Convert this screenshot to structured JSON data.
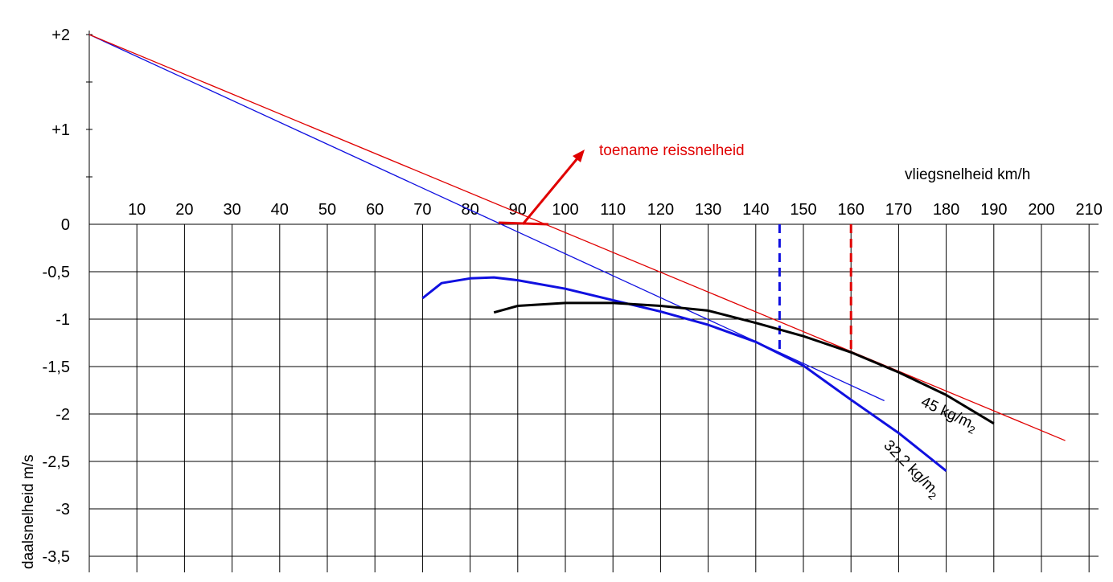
{
  "chart_data": {
    "type": "line",
    "title": "",
    "xlabel": "vliegsnelheid km/h",
    "ylabel": "daalsnelheid m/s",
    "xlim": [
      0,
      210
    ],
    "ylim": [
      -3.5,
      2
    ],
    "x_ticks": [
      10,
      20,
      30,
      40,
      50,
      60,
      70,
      80,
      90,
      100,
      110,
      120,
      130,
      140,
      150,
      160,
      170,
      180,
      190,
      200,
      210
    ],
    "y_ticks": [
      {
        "value": 2,
        "label": "+2"
      },
      {
        "value": 1,
        "label": "+1"
      },
      {
        "value": 0,
        "label": "0"
      },
      {
        "value": -0.5,
        "label": "-0,5"
      },
      {
        "value": -1,
        "label": "-1"
      },
      {
        "value": -1.5,
        "label": "-1,5"
      },
      {
        "value": -2,
        "label": "-2"
      },
      {
        "value": -2.5,
        "label": "-2,5"
      },
      {
        "value": -3,
        "label": "-3"
      },
      {
        "value": -3.5,
        "label": "-3,5"
      }
    ],
    "grid": true,
    "series": [
      {
        "name": "32,2 kg/m2",
        "label_text": "32,2 kg/m",
        "label_sub": "2",
        "color": "#1010e0",
        "x": [
          70,
          74,
          80,
          85,
          90,
          100,
          110,
          120,
          125,
          130,
          140,
          150,
          160,
          170,
          180
        ],
        "y": [
          -0.78,
          -0.62,
          -0.57,
          -0.56,
          -0.59,
          -0.68,
          -0.8,
          -0.92,
          -0.99,
          -1.06,
          -1.24,
          -1.49,
          -1.85,
          -2.2,
          -2.6
        ]
      },
      {
        "name": "45 kg/m2",
        "label_text": "45 kg/m",
        "label_sub": "2",
        "color": "#000000",
        "x": [
          85,
          90,
          100,
          110,
          120,
          130,
          140,
          150,
          160,
          170,
          180,
          190
        ],
        "y": [
          -0.93,
          -0.86,
          -0.83,
          -0.83,
          -0.86,
          -0.91,
          -1.04,
          -1.18,
          -1.35,
          -1.56,
          -1.8,
          -2.1
        ]
      }
    ],
    "tangent_lines": [
      {
        "color": "#1010e0",
        "from": [
          0,
          2
        ],
        "to": [
          167,
          -1.86
        ]
      },
      {
        "color": "#e00000",
        "from": [
          0,
          2
        ],
        "to": [
          205,
          -2.28
        ]
      }
    ],
    "speed_markers": [
      {
        "color": "#1010e0",
        "x": 145,
        "y_top": 0,
        "y_bottom": -1.35
      },
      {
        "color": "#e00000",
        "x": 160,
        "y_top": 0,
        "y_bottom": -1.35
      }
    ],
    "annotations": [
      {
        "text": "toename reissnelheid",
        "color": "#e00000"
      }
    ]
  }
}
